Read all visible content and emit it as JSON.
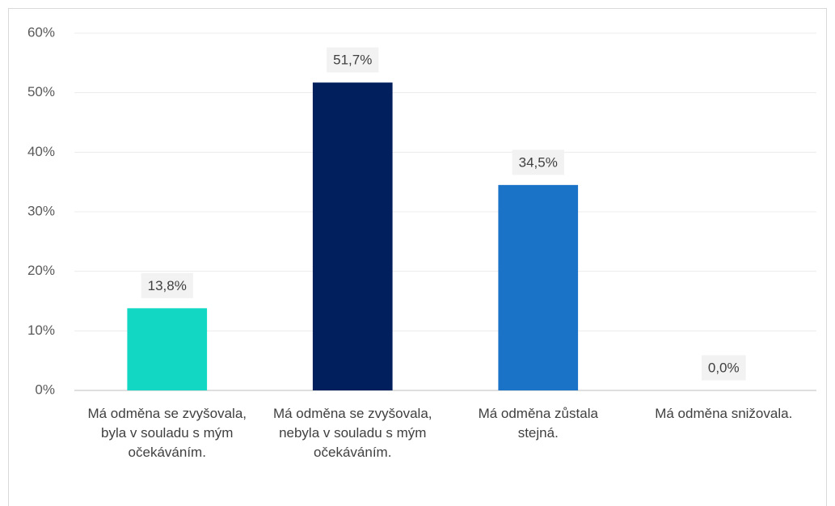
{
  "chart_data": {
    "type": "bar",
    "categories": [
      "Má odměna se zvyšovala, byla v souladu s mým očekáváním.",
      "Má odměna se zvyšovala, nebyla v souladu s mým očekáváním.",
      "Má odměna zůstala stejná.",
      "Má odměna snižovala."
    ],
    "values": [
      13.8,
      51.7,
      34.5,
      0.0
    ],
    "value_labels": [
      "13,8%",
      "51,7%",
      "34,5%",
      "0,0%"
    ],
    "colors": [
      "#12d8c3",
      "#001f5c",
      "#1b73c8",
      "#1b73c8"
    ],
    "ylim": [
      0,
      60
    ],
    "yticks": [
      {
        "value": 0,
        "label": "0%"
      },
      {
        "value": 10,
        "label": "10%"
      },
      {
        "value": 20,
        "label": "20%"
      },
      {
        "value": 30,
        "label": "30%"
      },
      {
        "value": 40,
        "label": "40%"
      },
      {
        "value": 50,
        "label": "50%"
      },
      {
        "value": 60,
        "label": "60%"
      }
    ],
    "grid": true
  }
}
